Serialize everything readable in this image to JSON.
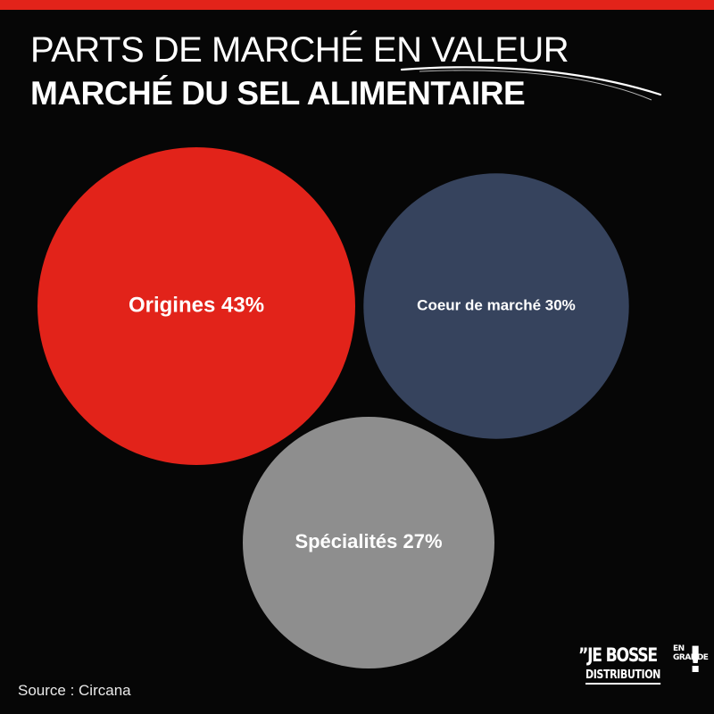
{
  "header": {
    "title_line1": "PARTS DE MARCHÉ EN VALEUR",
    "title_line2": "MARCHÉ DU SEL ALIMENTAIRE"
  },
  "colors": {
    "accent_red": "#e2231a",
    "navy": "#36435d",
    "grey": "#8e8e8e",
    "background": "#060606"
  },
  "chart_data": {
    "type": "bubble",
    "title": "PARTS DE MARCHÉ EN VALEUR",
    "subtitle": "MARCHÉ DU SEL ALIMENTAIRE",
    "unit": "%",
    "series": [
      {
        "name": "Origines",
        "value": 43,
        "label": "Origines 43%",
        "color": "#e2231a"
      },
      {
        "name": "Coeur de marché",
        "value": 30,
        "label": "Coeur de marché 30%",
        "color": "#36435d"
      },
      {
        "name": "Spécialités",
        "value": 27,
        "label": "Spécialités 27%",
        "color": "#8e8e8e"
      }
    ]
  },
  "footer": {
    "source": "Source : Circana",
    "logo": {
      "line1_main": "”JE BOSSE",
      "line1_small_top": "EN",
      "line1_small_bottom": "GRANDE",
      "line2": "DISTRIBUTION",
      "mark": "!"
    }
  }
}
